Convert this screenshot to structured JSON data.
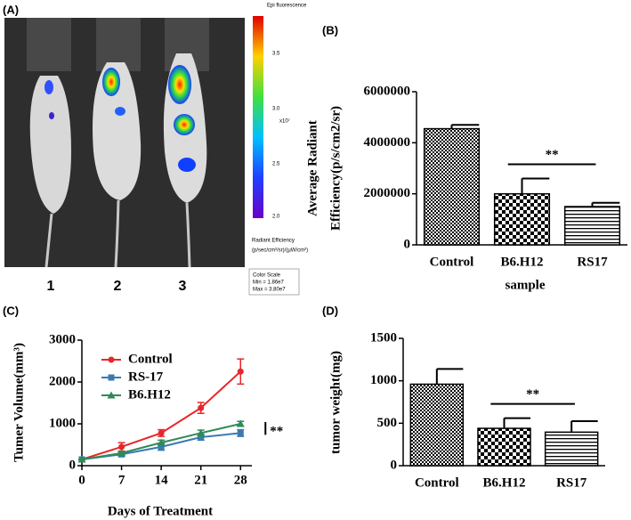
{
  "panel_a": {
    "label": "(A)",
    "mouse_labels": [
      "1",
      "2",
      "3"
    ],
    "colorbar": {
      "title": "Epi fluorescence",
      "ticks": [
        "3.5",
        "3.0",
        "2.5",
        "2.0"
      ],
      "exponent": "x10⁷",
      "unit_title": "Radiant Efficiency",
      "unit": "(p/sec/cm²/sr)/(µW/cm²)",
      "scale_title": "Color Scale",
      "min": "Min = 1.86e7",
      "max": "Max = 3.80e7"
    }
  },
  "chart_data": [
    {
      "type": "bar",
      "label": "(B)",
      "ylabel": [
        "Average Radiant",
        "Efficiency(p/s/cm2/sr)"
      ],
      "xlabel": "sample",
      "categories": [
        "Control",
        "B6.H12",
        "RS17"
      ],
      "values": [
        4550000,
        2000000,
        1500000
      ],
      "errors": [
        150000,
        600000,
        150000
      ],
      "ylim": [
        0,
        6000000
      ],
      "yticks": [
        0,
        2000000,
        4000000,
        6000000
      ],
      "annotation": "**",
      "color": "#000000"
    },
    {
      "type": "line",
      "label": "(C)",
      "ylabel": "Tumer Volume(mm³)",
      "xlabel": "Days of Treatment",
      "x": [
        0,
        7,
        14,
        21,
        28
      ],
      "xlim": [
        0,
        30
      ],
      "xticks": [
        0,
        7,
        14,
        21,
        28
      ],
      "ylim": [
        0,
        3000
      ],
      "yticks": [
        0,
        1000,
        2000,
        3000
      ],
      "legend": "upper left",
      "annotation": "**",
      "series": [
        {
          "name": "Control",
          "color": "#e8262a",
          "marker": "circle",
          "values": [
            150,
            450,
            780,
            1380,
            2250
          ],
          "errors": [
            0,
            100,
            80,
            130,
            300
          ]
        },
        {
          "name": "RS-17",
          "color": "#3a7ab0",
          "marker": "square",
          "values": [
            150,
            270,
            450,
            680,
            780
          ],
          "errors": [
            0,
            40,
            80,
            70,
            80
          ]
        },
        {
          "name": "B6.H12",
          "color": "#2e8b57",
          "marker": "triangle",
          "values": [
            150,
            300,
            550,
            780,
            1000
          ],
          "errors": [
            0,
            40,
            60,
            70,
            60
          ]
        }
      ]
    },
    {
      "type": "bar",
      "label": "(D)",
      "ylabel": "tumor weight(mg)",
      "categories": [
        "Control",
        "B6.H12",
        "RS17"
      ],
      "values": [
        960,
        440,
        395
      ],
      "errors": [
        180,
        120,
        130
      ],
      "ylim": [
        0,
        1500
      ],
      "yticks": [
        0,
        500,
        1000,
        1500
      ],
      "annotation": "**",
      "color": "#000000"
    }
  ]
}
